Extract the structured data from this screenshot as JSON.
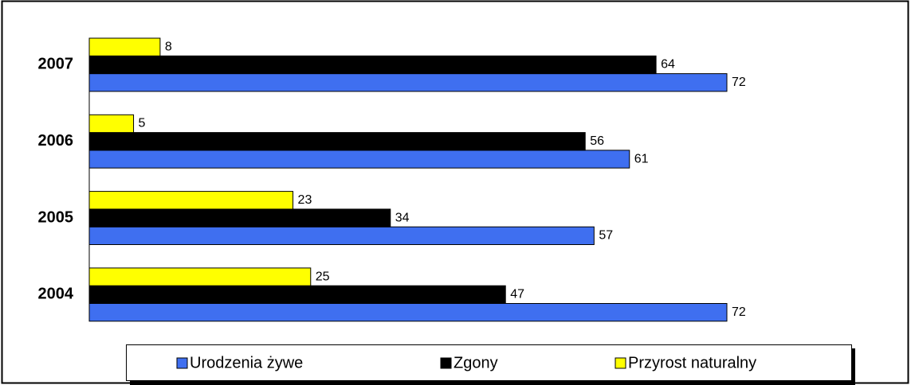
{
  "chart_data": {
    "type": "barh",
    "categories": [
      "2007",
      "2006",
      "2005",
      "2004"
    ],
    "series": [
      {
        "name": "Urodzenia żywe",
        "color": "#3f6ff0",
        "values": [
          72,
          61,
          57,
          72
        ]
      },
      {
        "name": "Zgony",
        "color": "#000000",
        "values": [
          64,
          56,
          34,
          47
        ]
      },
      {
        "name": "Przyrost naturalny",
        "color": "#ffff00",
        "values": [
          8,
          5,
          23,
          25
        ]
      }
    ],
    "legend": "bottom"
  }
}
